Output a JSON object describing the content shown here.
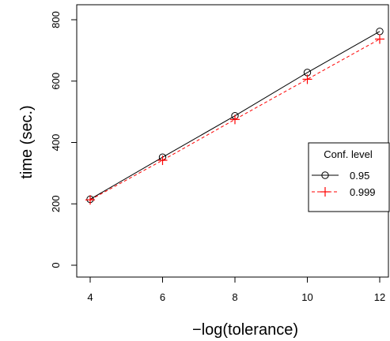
{
  "chart_data": {
    "type": "line",
    "title": "",
    "xlabel": "−log(tolerance)",
    "ylabel": "time (sec.)",
    "x": [
      4,
      6,
      8,
      10,
      12
    ],
    "xlim": [
      4,
      12
    ],
    "ylim": [
      0,
      800
    ],
    "xticks": [
      4,
      6,
      8,
      10,
      12
    ],
    "yticks": [
      0,
      200,
      400,
      600,
      800
    ],
    "grid": false,
    "legend_title": "Conf. level",
    "legend_position": "right",
    "series": [
      {
        "name": "0.95",
        "values": [
          215,
          352,
          487,
          628,
          762
        ],
        "color": "#000000",
        "line_style": "solid",
        "marker": "circle"
      },
      {
        "name": "0.999",
        "values": [
          213,
          342,
          475,
          606,
          737
        ],
        "color": "#ff0000",
        "line_style": "dashed",
        "marker": "plus"
      }
    ]
  }
}
